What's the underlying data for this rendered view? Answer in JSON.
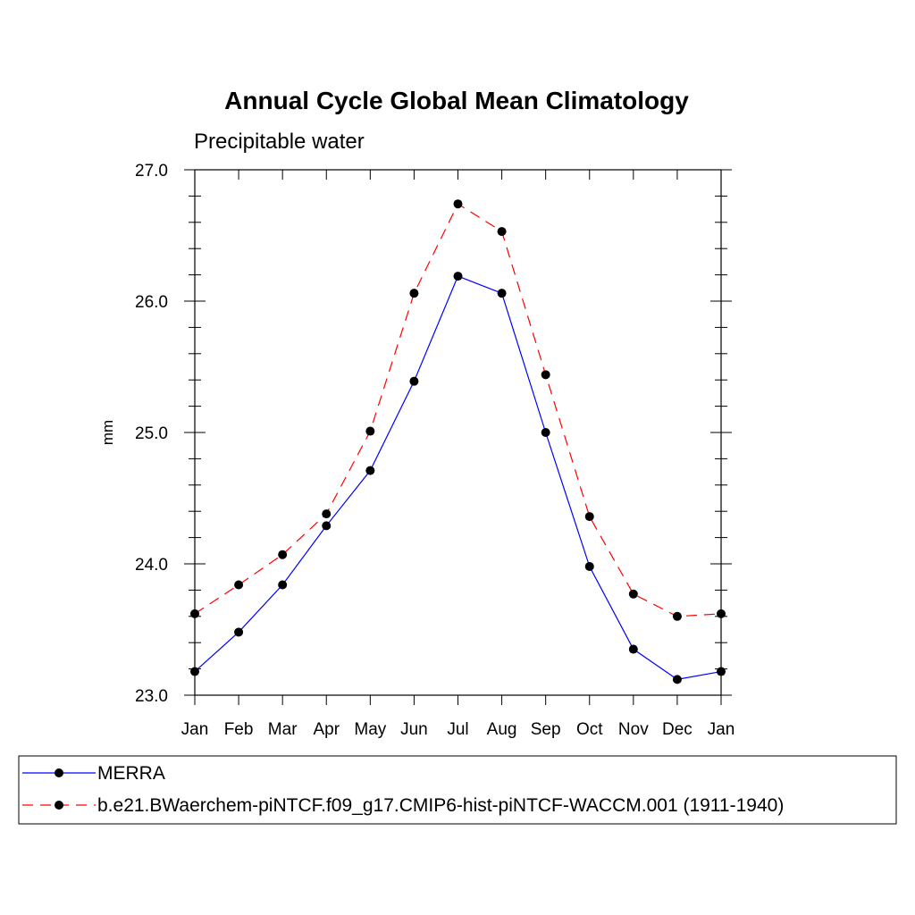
{
  "chart_data": {
    "type": "line",
    "title": "Annual Cycle Global Mean Climatology",
    "subtitle": "Precipitable water",
    "xlabel": "",
    "ylabel": "mm",
    "categories": [
      "Jan",
      "Feb",
      "Mar",
      "Apr",
      "May",
      "Jun",
      "Jul",
      "Aug",
      "Sep",
      "Oct",
      "Nov",
      "Dec",
      "Jan"
    ],
    "ylim": [
      23.0,
      27.0
    ],
    "yticks": [
      "23.0",
      "24.0",
      "25.0",
      "26.0",
      "27.0"
    ],
    "grid": false,
    "legend_position": "bottom",
    "series": [
      {
        "name": "MERRA",
        "color": "#0000ff",
        "dash": "solid",
        "marker_color": "#000000",
        "values": [
          23.18,
          23.48,
          23.84,
          24.29,
          24.71,
          25.39,
          26.19,
          26.06,
          25.0,
          23.98,
          23.35,
          23.12,
          23.18
        ]
      },
      {
        "name": "b.e21.BWaerchem-piNTCF.f09_g17.CMIP6-hist-piNTCF-WACCM.001 (1911-1940)",
        "color": "#ff0000",
        "dash": "dashed",
        "marker_color": "#000000",
        "values": [
          23.62,
          23.84,
          24.07,
          24.38,
          25.01,
          26.06,
          26.74,
          26.53,
          25.44,
          24.36,
          23.77,
          23.6,
          23.62
        ]
      }
    ]
  }
}
